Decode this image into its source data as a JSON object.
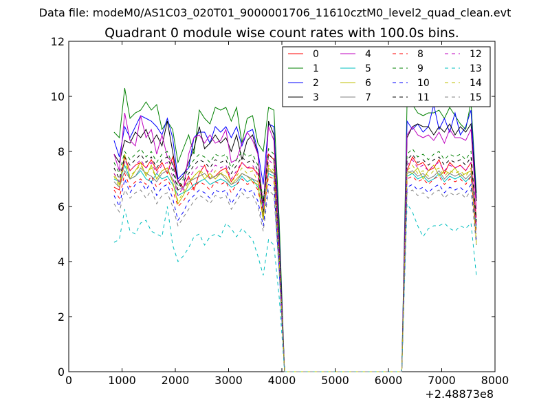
{
  "chart_data": {
    "type": "line",
    "suptitle": "Data file: modeM0/AS1C03_020T01_9000001706_11610cztM0_level2_quad_clean.evt",
    "title": "Quadrant 0 module wise count rates with 100.0s bins.",
    "xlabel": "",
    "ylabel": "",
    "x_offset_label": "+2.48873e8",
    "xlim": [
      0,
      8000
    ],
    "ylim": [
      0,
      12
    ],
    "xticks": [
      0,
      1000,
      2000,
      3000,
      4000,
      5000,
      6000,
      7000,
      8000
    ],
    "yticks": [
      0,
      2,
      4,
      6,
      8,
      10,
      12
    ],
    "grid": false,
    "legend": {
      "placement": "top-right",
      "columns": 4
    },
    "x": [
      850,
      950,
      1050,
      1150,
      1250,
      1350,
      1450,
      1550,
      1650,
      1750,
      1850,
      1950,
      2050,
      2150,
      2250,
      2350,
      2450,
      2550,
      2650,
      2750,
      2850,
      2950,
      3050,
      3150,
      3250,
      3350,
      3450,
      3550,
      3650,
      3750,
      3850,
      3950,
      4050,
      4150,
      4250,
      4350,
      4450,
      4550,
      4650,
      4750,
      4850,
      4950,
      5050,
      5150,
      5250,
      5350,
      5450,
      5550,
      5650,
      5750,
      5850,
      5950,
      6050,
      6150,
      6250,
      6350,
      6450,
      6550,
      6650,
      6750,
      6850,
      6950,
      7050,
      7150,
      7250,
      7350,
      7450,
      7550,
      7650
    ],
    "series": [
      {
        "name": "0",
        "color": "#ff0000",
        "dash": "solid",
        "values": [
          6.7,
          6.6,
          7.8,
          7.3,
          7.5,
          7.6,
          7.4,
          7.7,
          7.3,
          7.6,
          7.2,
          7.8,
          6.9,
          6.7,
          7.1,
          6.6,
          7.2,
          7.5,
          7.0,
          7.1,
          7.3,
          7.4,
          6.9,
          7.2,
          7.6,
          7.4,
          7.4,
          7.2,
          6.1,
          7.9,
          7.7,
          4.0,
          0,
          0,
          0,
          0,
          0,
          0,
          0,
          0,
          0,
          0,
          0,
          0,
          0,
          0,
          0,
          0,
          0,
          0,
          0,
          0,
          0,
          0,
          0,
          7.3,
          7.8,
          7.5,
          7.6,
          7.3,
          7.4,
          7.7,
          7.2,
          7.6,
          7.4,
          7.5,
          7.3,
          7.6,
          5.6
        ]
      },
      {
        "name": "1",
        "color": "#008000",
        "dash": "solid",
        "values": [
          8.7,
          8.5,
          10.3,
          9.2,
          9.4,
          9.5,
          9.8,
          9.5,
          9.7,
          8.8,
          9.1,
          8.8,
          7.6,
          8.1,
          8.6,
          7.9,
          9.5,
          9.2,
          9.0,
          9.6,
          9.5,
          9.6,
          9.1,
          9.6,
          8.3,
          9.2,
          9.3,
          8.3,
          8.0,
          9.6,
          9.5,
          5.5,
          0,
          0,
          0,
          0,
          0,
          0,
          0,
          0,
          0,
          0,
          0,
          0,
          0,
          0,
          0,
          0,
          0,
          0,
          0,
          0,
          0,
          0,
          0,
          9.8,
          9.7,
          9.4,
          9.3,
          9.4,
          9.4,
          9.5,
          9.2,
          9.6,
          9.3,
          9.0,
          8.8,
          9.8,
          6.5
        ]
      },
      {
        "name": "2",
        "color": "#0000ff",
        "dash": "solid",
        "values": [
          8.4,
          7.8,
          8.9,
          8.5,
          8.9,
          9.3,
          9.2,
          9.1,
          8.9,
          8.6,
          9.2,
          8.5,
          7.0,
          7.2,
          7.4,
          8.5,
          8.7,
          8.7,
          8.3,
          8.9,
          8.7,
          8.9,
          8.5,
          8.9,
          8.2,
          8.7,
          8.8,
          8.0,
          6.8,
          9.0,
          8.9,
          5.0,
          0,
          0,
          0,
          0,
          0,
          0,
          0,
          0,
          0,
          0,
          0,
          0,
          0,
          0,
          0,
          0,
          0,
          0,
          0,
          0,
          0,
          0,
          0,
          9.1,
          8.8,
          9.0,
          8.7,
          8.9,
          9.7,
          8.8,
          9.2,
          8.7,
          9.4,
          8.6,
          8.9,
          9.5,
          6.3
        ]
      },
      {
        "name": "3",
        "color": "#000000",
        "dash": "solid",
        "values": [
          7.9,
          7.6,
          8.4,
          8.3,
          8.7,
          8.5,
          8.8,
          8.3,
          8.6,
          8.2,
          9.1,
          8.0,
          6.9,
          7.1,
          7.6,
          8.1,
          8.9,
          8.1,
          8.3,
          8.6,
          8.3,
          8.5,
          8.0,
          8.6,
          7.7,
          8.4,
          8.6,
          7.9,
          5.6,
          9.1,
          8.6,
          4.8,
          0,
          0,
          0,
          0,
          0,
          0,
          0,
          0,
          0,
          0,
          0,
          0,
          0,
          0,
          0,
          0,
          0,
          0,
          0,
          0,
          0,
          0,
          0,
          8.5,
          8.9,
          9.0,
          8.9,
          8.9,
          8.6,
          8.9,
          8.7,
          9.0,
          8.6,
          8.9,
          8.7,
          9.0,
          6.2
        ]
      },
      {
        "name": "4",
        "color": "#bf00bf",
        "dash": "solid",
        "values": [
          7.9,
          7.3,
          9.4,
          8.4,
          8.2,
          9.3,
          8.5,
          8.8,
          7.9,
          8.6,
          7.8,
          7.6,
          6.9,
          6.6,
          7.9,
          8.5,
          8.6,
          8.3,
          8.6,
          8.3,
          8.4,
          8.8,
          7.6,
          7.7,
          8.3,
          8.7,
          8.4,
          7.9,
          6.0,
          8.9,
          8.4,
          4.6,
          0,
          0,
          0,
          0,
          0,
          0,
          0,
          0,
          0,
          0,
          0,
          0,
          0,
          0,
          0,
          0,
          0,
          0,
          0,
          0,
          0,
          0,
          0,
          8.6,
          8.9,
          8.6,
          8.5,
          8.6,
          8.4,
          8.7,
          8.3,
          8.8,
          8.5,
          8.5,
          8.4,
          8.8,
          5.9
        ]
      },
      {
        "name": "5",
        "color": "#00bfbf",
        "dash": "solid",
        "values": [
          7.0,
          6.9,
          7.5,
          7.0,
          7.1,
          7.3,
          7.0,
          6.9,
          7.2,
          7.0,
          7.1,
          6.8,
          6.4,
          6.5,
          6.6,
          6.8,
          6.9,
          7.0,
          6.8,
          6.9,
          7.0,
          6.9,
          6.7,
          6.8,
          7.1,
          6.9,
          7.0,
          6.7,
          5.9,
          7.2,
          7.1,
          3.8,
          0,
          0,
          0,
          0,
          0,
          0,
          0,
          0,
          0,
          0,
          0,
          0,
          0,
          0,
          0,
          0,
          0,
          0,
          0,
          0,
          0,
          0,
          0,
          7.1,
          7.2,
          7.0,
          7.1,
          6.9,
          7.0,
          7.2,
          6.9,
          7.1,
          7.0,
          7.1,
          6.9,
          7.1,
          5.2
        ]
      },
      {
        "name": "6",
        "color": "#bfbf00",
        "dash": "solid",
        "values": [
          7.2,
          6.8,
          7.9,
          7.0,
          7.3,
          7.6,
          7.1,
          7.5,
          7.0,
          7.3,
          7.4,
          6.9,
          6.1,
          6.4,
          6.8,
          7.1,
          7.3,
          7.0,
          7.2,
          7.0,
          7.2,
          7.1,
          6.8,
          7.0,
          7.2,
          7.1,
          6.9,
          6.8,
          5.5,
          7.4,
          7.2,
          4.1,
          0,
          0,
          0,
          0,
          0,
          0,
          0,
          0,
          0,
          0,
          0,
          0,
          0,
          0,
          0,
          0,
          0,
          0,
          0,
          0,
          0,
          0,
          0,
          7.3,
          7.2,
          7.4,
          7.0,
          7.3,
          7.5,
          7.1,
          7.3,
          7.2,
          7.4,
          7.1,
          7.2,
          7.3,
          4.7
        ]
      },
      {
        "name": "7",
        "color": "#808080",
        "dash": "solid",
        "values": [
          6.9,
          6.7,
          7.3,
          7.0,
          7.1,
          7.4,
          7.2,
          7.1,
          6.9,
          7.2,
          7.3,
          7.0,
          6.6,
          6.7,
          6.9,
          7.0,
          7.1,
          7.2,
          7.0,
          7.1,
          7.2,
          7.0,
          6.8,
          6.9,
          7.2,
          7.1,
          7.0,
          6.9,
          6.2,
          7.3,
          7.2,
          4.2,
          0,
          0,
          0,
          0,
          0,
          0,
          0,
          0,
          0,
          0,
          0,
          0,
          0,
          0,
          0,
          0,
          0,
          0,
          0,
          0,
          0,
          0,
          0,
          7.2,
          7.3,
          7.1,
          7.2,
          7.0,
          7.1,
          7.3,
          7.0,
          7.2,
          7.1,
          7.2,
          7.0,
          7.2,
          5.3
        ]
      },
      {
        "name": "8",
        "color": "#ff0000",
        "dash": "dashed",
        "values": [
          6.6,
          6.3,
          7.2,
          6.7,
          6.9,
          7.0,
          6.8,
          7.1,
          6.7,
          6.9,
          7.0,
          6.6,
          6.0,
          6.2,
          6.5,
          6.7,
          6.9,
          6.8,
          6.6,
          6.9,
          6.8,
          6.9,
          6.5,
          6.8,
          7.0,
          6.8,
          6.9,
          6.6,
          5.7,
          7.1,
          7.0,
          3.9,
          0,
          0,
          0,
          0,
          0,
          0,
          0,
          0,
          0,
          0,
          0,
          0,
          0,
          0,
          0,
          0,
          0,
          0,
          0,
          0,
          0,
          0,
          0,
          7.0,
          7.1,
          6.9,
          7.0,
          6.8,
          7.0,
          7.1,
          6.8,
          7.0,
          6.9,
          7.0,
          6.8,
          7.1,
          5.0
        ]
      },
      {
        "name": "9",
        "color": "#008000",
        "dash": "dashed",
        "values": [
          7.6,
          7.2,
          8.0,
          7.7,
          7.9,
          8.1,
          7.8,
          8.0,
          7.6,
          7.9,
          8.0,
          7.5,
          6.7,
          7.0,
          7.4,
          7.7,
          7.9,
          7.8,
          7.6,
          7.9,
          7.8,
          7.9,
          7.4,
          7.7,
          8.0,
          7.8,
          7.9,
          7.5,
          6.2,
          8.1,
          7.9,
          4.4,
          0,
          0,
          0,
          0,
          0,
          0,
          0,
          0,
          0,
          0,
          0,
          0,
          0,
          0,
          0,
          0,
          0,
          0,
          0,
          0,
          0,
          0,
          0,
          7.9,
          8.1,
          7.8,
          7.9,
          7.7,
          7.9,
          8.0,
          7.7,
          7.9,
          7.8,
          7.9,
          7.7,
          8.0,
          5.5
        ]
      },
      {
        "name": "10",
        "color": "#0000ff",
        "dash": "dashed",
        "values": [
          6.4,
          6.0,
          7.0,
          6.5,
          6.8,
          6.9,
          6.6,
          6.9,
          6.4,
          6.7,
          6.8,
          6.3,
          5.5,
          5.8,
          6.2,
          6.4,
          6.6,
          6.5,
          6.3,
          6.6,
          6.5,
          6.6,
          6.1,
          6.4,
          6.7,
          6.5,
          6.6,
          6.2,
          5.3,
          6.8,
          6.7,
          3.7,
          0,
          0,
          0,
          0,
          0,
          0,
          0,
          0,
          0,
          0,
          0,
          0,
          0,
          0,
          0,
          0,
          0,
          0,
          0,
          0,
          0,
          0,
          0,
          6.7,
          6.8,
          6.6,
          6.7,
          6.5,
          6.7,
          6.8,
          6.5,
          6.7,
          6.6,
          6.7,
          6.5,
          6.8,
          4.8
        ]
      },
      {
        "name": "11",
        "color": "#000000",
        "dash": "dashed",
        "values": [
          7.4,
          7.0,
          7.8,
          7.5,
          7.7,
          7.9,
          7.6,
          7.8,
          7.4,
          7.7,
          7.8,
          7.3,
          6.6,
          6.9,
          7.2,
          7.5,
          7.7,
          7.6,
          7.4,
          7.7,
          7.6,
          7.7,
          7.2,
          7.5,
          7.8,
          7.6,
          7.7,
          7.3,
          6.1,
          7.9,
          7.7,
          4.3,
          0,
          0,
          0,
          0,
          0,
          0,
          0,
          0,
          0,
          0,
          0,
          0,
          0,
          0,
          0,
          0,
          0,
          0,
          0,
          0,
          0,
          0,
          0,
          7.7,
          7.9,
          7.6,
          7.7,
          7.5,
          7.7,
          7.8,
          7.5,
          7.7,
          7.6,
          7.7,
          7.5,
          7.8,
          5.4
        ]
      },
      {
        "name": "12",
        "color": "#bf00bf",
        "dash": "dashed",
        "values": [
          7.2,
          6.9,
          7.7,
          7.3,
          7.5,
          7.7,
          7.4,
          7.6,
          7.2,
          7.5,
          7.6,
          7.1,
          6.4,
          6.7,
          7.0,
          7.3,
          7.5,
          7.4,
          7.2,
          7.5,
          7.4,
          7.5,
          7.0,
          7.3,
          7.6,
          7.4,
          7.5,
          7.1,
          5.9,
          7.7,
          7.5,
          4.2,
          0,
          0,
          0,
          0,
          0,
          0,
          0,
          0,
          0,
          0,
          0,
          0,
          0,
          0,
          0,
          0,
          0,
          0,
          0,
          0,
          0,
          0,
          0,
          7.5,
          7.7,
          7.4,
          7.5,
          7.3,
          7.5,
          7.6,
          7.3,
          7.5,
          7.4,
          7.5,
          7.3,
          7.6,
          5.3
        ]
      },
      {
        "name": "13",
        "color": "#00bfbf",
        "dash": "dashed",
        "values": [
          4.7,
          4.8,
          5.9,
          5.1,
          5.0,
          5.4,
          5.5,
          5.1,
          5.0,
          4.9,
          6.0,
          4.6,
          4.0,
          4.2,
          4.5,
          4.9,
          5.0,
          4.6,
          4.9,
          5.0,
          4.9,
          5.4,
          5.2,
          4.9,
          5.2,
          5.0,
          4.8,
          4.2,
          3.5,
          4.8,
          4.6,
          2.7,
          0,
          0,
          0,
          0,
          0,
          0,
          0,
          0,
          0,
          0,
          0,
          0,
          0,
          0,
          0,
          0,
          0,
          0,
          0,
          0,
          0,
          0,
          0,
          6.1,
          5.8,
          5.3,
          4.9,
          5.2,
          5.3,
          5.3,
          5.4,
          5.2,
          5.1,
          5.3,
          5.2,
          5.4,
          3.5
        ]
      },
      {
        "name": "14",
        "color": "#bfbf00",
        "dash": "dashed",
        "values": [
          7.1,
          6.7,
          7.6,
          7.1,
          7.3,
          7.5,
          7.2,
          7.4,
          7.0,
          7.3,
          7.4,
          6.9,
          6.2,
          6.5,
          6.9,
          7.1,
          7.3,
          7.2,
          7.0,
          7.3,
          7.2,
          7.3,
          6.9,
          7.1,
          7.4,
          7.2,
          7.3,
          6.9,
          5.7,
          7.5,
          7.3,
          4.1,
          0,
          0,
          0,
          0,
          0,
          0,
          0,
          0,
          0,
          0,
          0,
          0,
          0,
          0,
          0,
          0,
          0,
          0,
          0,
          0,
          0,
          0,
          0,
          7.3,
          7.5,
          7.2,
          7.3,
          7.1,
          7.3,
          7.4,
          7.1,
          7.3,
          7.2,
          7.3,
          7.1,
          7.4,
          4.6
        ]
      },
      {
        "name": "15",
        "color": "#808080",
        "dash": "dashed",
        "values": [
          6.1,
          5.8,
          6.6,
          6.3,
          6.5,
          6.6,
          6.3,
          6.6,
          6.1,
          6.4,
          6.5,
          6.0,
          5.3,
          5.6,
          5.9,
          6.2,
          6.4,
          6.3,
          6.1,
          6.4,
          6.3,
          6.4,
          5.9,
          6.2,
          6.5,
          6.3,
          6.4,
          6.0,
          5.1,
          6.6,
          6.4,
          3.6,
          0,
          0,
          0,
          0,
          0,
          0,
          0,
          0,
          0,
          0,
          0,
          0,
          0,
          0,
          0,
          0,
          0,
          0,
          0,
          0,
          0,
          0,
          0,
          6.5,
          6.6,
          6.4,
          6.5,
          6.3,
          6.5,
          6.6,
          6.3,
          6.5,
          6.4,
          6.5,
          6.3,
          6.6,
          4.6
        ]
      }
    ]
  }
}
